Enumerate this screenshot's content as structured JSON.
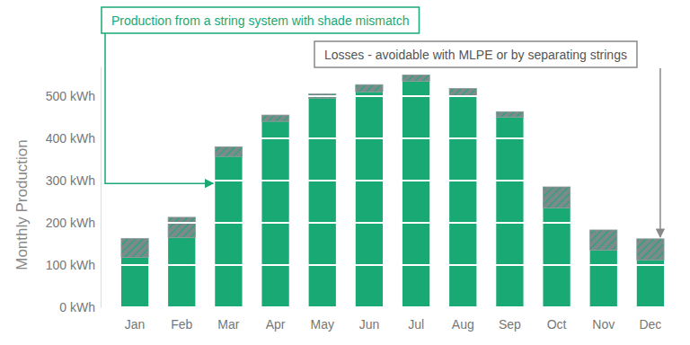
{
  "chart_data": {
    "type": "bar",
    "stacked": true,
    "grid": true,
    "y_label": "Monthly Production",
    "categories": [
      "Jan",
      "Feb",
      "Mar",
      "Apr",
      "May",
      "Jun",
      "Jul",
      "Aug",
      "Sep",
      "Oct",
      "Nov",
      "Dec"
    ],
    "series": [
      {
        "name": "Production from a string system with shade mismatch",
        "color": "#19a974",
        "values": [
          118,
          165,
          357,
          440,
          495,
          510,
          535,
          500,
          450,
          235,
          135,
          112
        ]
      },
      {
        "name": "Losses - avoidable with MLPE or by separating strings",
        "color": "#7b8a8b",
        "values": [
          45,
          48,
          23,
          15,
          10,
          17,
          15,
          18,
          13,
          50,
          48,
          50
        ]
      }
    ],
    "ylim": [
      0,
      570
    ],
    "yticks": [
      {
        "value": 0,
        "label": "0 kWh"
      },
      {
        "value": 100,
        "label": "100 kWh"
      },
      {
        "value": 200,
        "label": "200 kWh"
      },
      {
        "value": 300,
        "label": "300 kWh"
      },
      {
        "value": 400,
        "label": "400 kWh"
      },
      {
        "value": 500,
        "label": "500 kWh"
      }
    ]
  }
}
